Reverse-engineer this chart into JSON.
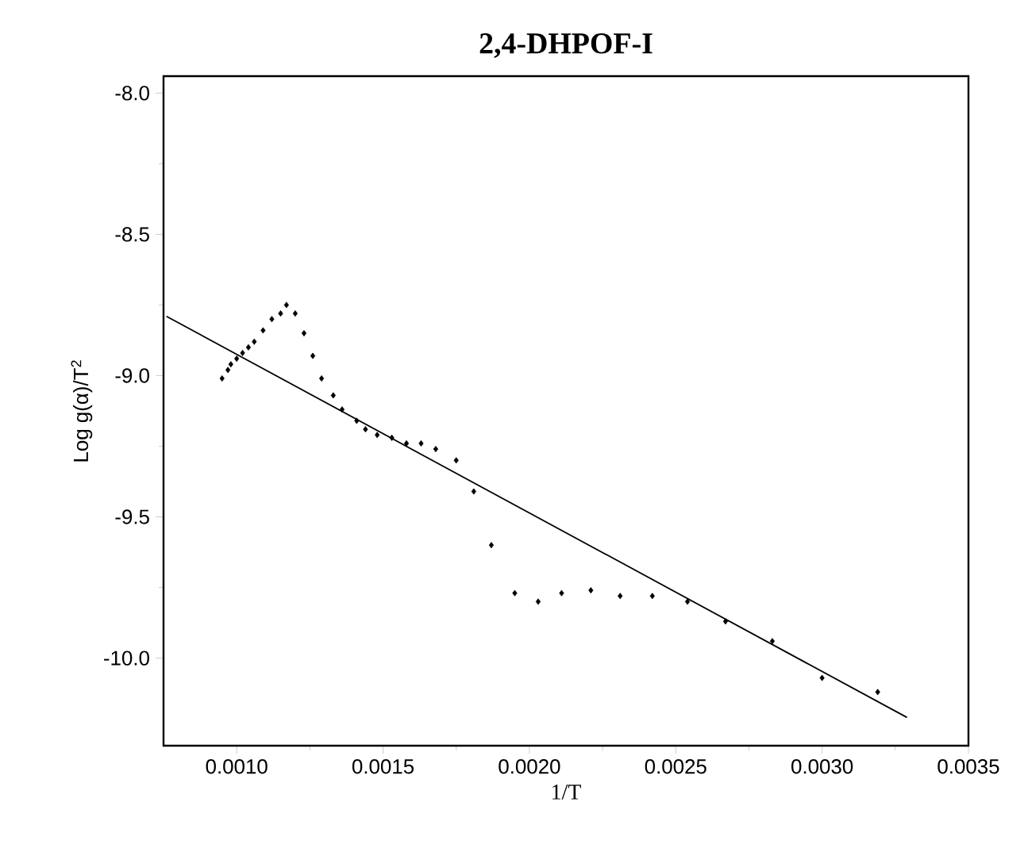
{
  "chart_data": {
    "type": "scatter",
    "title": "2,4-DHPOF-I",
    "xlabel": "1/T",
    "ylabel": "Log g(α)/T$^{2}$",
    "xlim": [
      0.00075,
      0.0035
    ],
    "ylim": [
      -10.31,
      -7.94
    ],
    "xticks": [
      {
        "value": 0.001,
        "label": "0.0010"
      },
      {
        "value": 0.0015,
        "label": "0.0015"
      },
      {
        "value": 0.002,
        "label": "0.0020"
      },
      {
        "value": 0.0025,
        "label": "0.0025"
      },
      {
        "value": 0.003,
        "label": "0.0030"
      },
      {
        "value": 0.0035,
        "label": "0.0035"
      }
    ],
    "yticks": [
      {
        "value": -8.0,
        "label": "-8.0"
      },
      {
        "value": -8.5,
        "label": "-8.5"
      },
      {
        "value": -9.0,
        "label": "-9.0"
      },
      {
        "value": -9.5,
        "label": "-9.5"
      },
      {
        "value": -10.0,
        "label": "-10.0"
      }
    ],
    "grid": false,
    "series": [
      {
        "marker": "diamond",
        "color": "#000000",
        "x": [
          0.00095,
          0.00097,
          0.00098,
          0.001,
          0.00102,
          0.00104,
          0.00106,
          0.00109,
          0.00112,
          0.00115,
          0.00117,
          0.0012,
          0.00123,
          0.00126,
          0.00129,
          0.00133,
          0.00136,
          0.00141,
          0.00144,
          0.00148,
          0.00153,
          0.00158,
          0.00163,
          0.00168,
          0.00175,
          0.00181,
          0.00187,
          0.00195,
          0.00203,
          0.00211,
          0.00221,
          0.00231,
          0.00242,
          0.00254,
          0.00267,
          0.00283,
          0.003,
          0.00319
        ],
        "values": [
          -9.01,
          -8.98,
          -8.96,
          -8.94,
          -8.92,
          -8.9,
          -8.88,
          -8.84,
          -8.8,
          -8.78,
          -8.75,
          -8.78,
          -8.85,
          -8.93,
          -9.01,
          -9.07,
          -9.12,
          -9.16,
          -9.19,
          -9.21,
          -9.22,
          -9.24,
          -9.24,
          -9.26,
          -9.3,
          -9.41,
          -9.6,
          -9.77,
          -9.8,
          -9.77,
          -9.76,
          -9.78,
          -9.78,
          -9.8,
          -9.87,
          -9.94,
          -10.07,
          -10.12
        ]
      },
      {
        "type": "line",
        "color": "#000000",
        "x": [
          0.00076,
          0.00329
        ],
        "values": [
          -8.79,
          -10.21
        ]
      }
    ]
  }
}
